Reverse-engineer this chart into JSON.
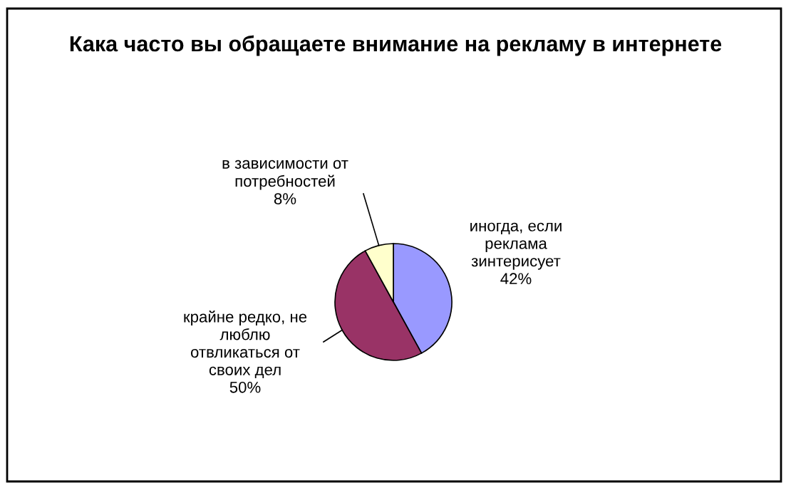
{
  "chart_data": {
    "type": "pie",
    "title": "Кака часто вы обращаете внимание на рекламу в интернете",
    "categories": [
      "иногда, если\nреклама\nзинтерисует",
      "крайне редко, не\nлюблю\nотвликаться от\nсвоих дел",
      "в зависимости от\nпотребностей"
    ],
    "values": [
      42,
      50,
      8
    ],
    "value_labels": [
      "42%",
      "50%",
      "8%"
    ],
    "colors": [
      "#9999ff",
      "#993366",
      "#ffffcc"
    ]
  }
}
